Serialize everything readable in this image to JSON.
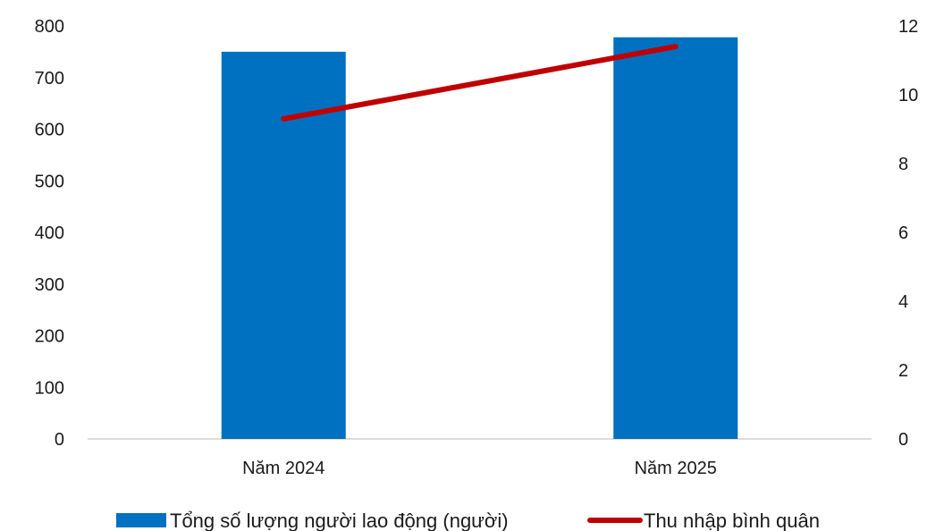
{
  "chart_data": {
    "type": "bar",
    "categories": [
      "Năm 2024",
      "Năm 2025"
    ],
    "series": [
      {
        "name": "Tổng số lượng người lao động (người)",
        "type": "bar",
        "axis": "left",
        "values": [
          750,
          778
        ],
        "color": "#0070C0"
      },
      {
        "name": "Thu nhập bình quân",
        "type": "line",
        "axis": "right",
        "values": [
          9.3,
          11.4
        ],
        "color": "#C00000"
      }
    ],
    "y_left": {
      "min": 0,
      "max": 800,
      "step": 100,
      "ticks": [
        "0",
        "100",
        "200",
        "300",
        "400",
        "500",
        "600",
        "700",
        "800"
      ]
    },
    "y_right": {
      "min": 0,
      "max": 12,
      "step": 2,
      "ticks": [
        "0",
        "2",
        "4",
        "6",
        "8",
        "10",
        "12"
      ]
    },
    "legend_position": "bottom",
    "grid": false,
    "title": "",
    "xlabel": "",
    "ylabel": ""
  }
}
